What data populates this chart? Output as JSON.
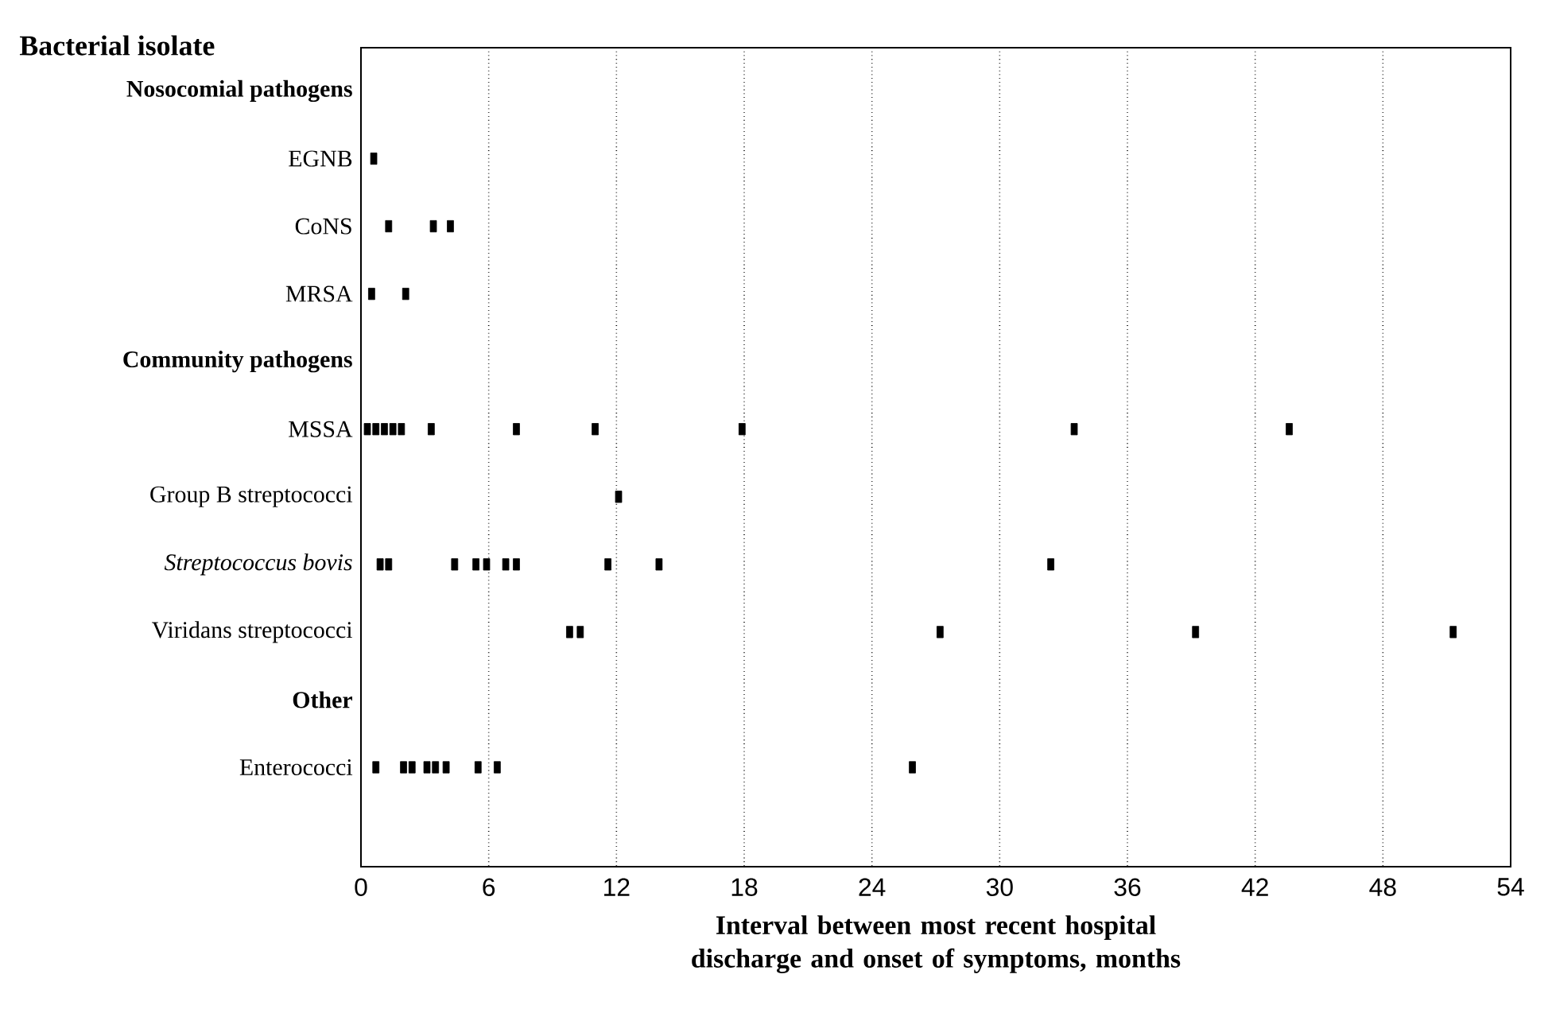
{
  "chart_data": {
    "type": "scatter",
    "orientation": "horizontal",
    "ylabel": "Bacterial isolate",
    "xlabel": "Interval between most recent hospital discharge and onset of symptoms, months",
    "categories": [
      "**Nosocomial pathogens**",
      "EGNB",
      "CoNS",
      "MRSA",
      "**Community pathogens**",
      "MSSA",
      "Group B streptococci",
      "*Streptococcus bovis*",
      "Viridans streptococci",
      "**Other**",
      "Enterococci"
    ],
    "series": [
      {
        "color": "#000000",
        "values": [
          null,
          0.6,
          1.3,
          0.5,
          null,
          0.3,
          12.1,
          0.9,
          9.8,
          null,
          0.7
        ]
      },
      {
        "color": "#000000",
        "values": [
          null,
          null,
          3.4,
          2.1,
          null,
          0.7,
          null,
          1.3,
          10.3,
          null,
          2.0
        ]
      },
      {
        "color": "#000000",
        "values": [
          null,
          null,
          4.2,
          null,
          null,
          1.1,
          null,
          4.4,
          27.2,
          null,
          2.4
        ]
      },
      {
        "color": "#000000",
        "values": [
          null,
          null,
          null,
          null,
          null,
          1.5,
          null,
          5.4,
          39.2,
          null,
          3.1
        ]
      },
      {
        "color": "#000000",
        "values": [
          null,
          null,
          null,
          null,
          null,
          1.9,
          null,
          5.9,
          51.3,
          null,
          3.5
        ]
      },
      {
        "color": "#000000",
        "values": [
          null,
          null,
          null,
          null,
          null,
          3.3,
          null,
          6.8,
          null,
          null,
          4.0
        ]
      },
      {
        "color": "#000000",
        "values": [
          null,
          null,
          null,
          null,
          null,
          7.3,
          null,
          7.3,
          null,
          null,
          5.5
        ]
      },
      {
        "color": "#000000",
        "values": [
          null,
          null,
          null,
          null,
          null,
          11.0,
          null,
          11.6,
          null,
          null,
          6.4
        ]
      },
      {
        "color": "#000000",
        "values": [
          null,
          null,
          null,
          null,
          null,
          17.9,
          null,
          14.0,
          null,
          null,
          25.9
        ]
      },
      {
        "color": "#000000",
        "values": [
          null,
          null,
          null,
          null,
          null,
          33.5,
          null,
          32.4,
          null,
          null,
          null
        ]
      },
      {
        "color": "#000000",
        "values": [
          null,
          null,
          null,
          null,
          null,
          43.6,
          null,
          null,
          null,
          null,
          null
        ]
      }
    ],
    "xlim": [
      0,
      54
    ],
    "xticks": [
      0,
      6,
      12,
      18,
      24,
      30,
      36,
      42,
      48,
      54
    ],
    "grid": "x",
    "marker": "square"
  }
}
